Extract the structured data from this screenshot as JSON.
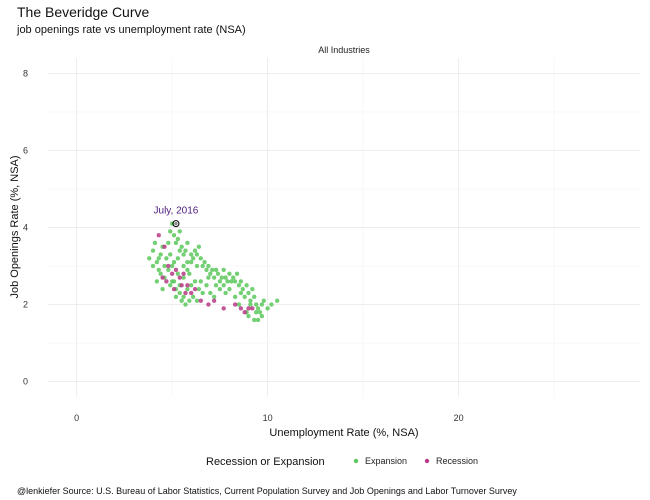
{
  "chart_data": {
    "type": "scatter",
    "title": "The Beveridge Curve",
    "subtitle": "job openings rate vs unemployment rate (NSA)",
    "facet": "All Industries",
    "xlabel": "Unemployment Rate (%, NSA)",
    "ylabel": "Job Openings Rate (%, NSA)",
    "xlim": [
      -1.5,
      29.5
    ],
    "ylim": [
      -0.4,
      8.4
    ],
    "x_ticks": [
      0,
      10,
      20
    ],
    "y_ticks": [
      0,
      2,
      4,
      6,
      8
    ],
    "grid": true,
    "legend": {
      "title": "Recession or Expansion",
      "position": "bottom"
    },
    "annotation": {
      "text": "July, 2016",
      "x": 5.2,
      "y": 4.1
    },
    "colors": {
      "Expansion": "#5cc85c",
      "Recession": "#b83b86",
      "annotation": "#4b1a7a",
      "grid": "#ebebeb"
    },
    "series": [
      {
        "name": "Expansion",
        "points": [
          [
            3.8,
            3.2
          ],
          [
            4.0,
            3.4
          ],
          [
            4.1,
            3.6
          ],
          [
            4.2,
            3.1
          ],
          [
            4.3,
            2.9
          ],
          [
            4.4,
            3.3
          ],
          [
            4.5,
            3.5
          ],
          [
            4.6,
            3.0
          ],
          [
            4.7,
            3.2
          ],
          [
            4.8,
            3.6
          ],
          [
            4.9,
            3.9
          ],
          [
            5.0,
            4.1
          ],
          [
            5.1,
            3.8
          ],
          [
            5.2,
            3.6
          ],
          [
            5.3,
            3.7
          ],
          [
            5.4,
            3.9
          ],
          [
            5.5,
            3.5
          ],
          [
            5.6,
            3.3
          ],
          [
            5.7,
            3.4
          ],
          [
            5.8,
            3.1
          ],
          [
            4.6,
            2.7
          ],
          [
            4.8,
            2.9
          ],
          [
            5.0,
            3.0
          ],
          [
            5.1,
            2.6
          ],
          [
            5.3,
            2.8
          ],
          [
            5.4,
            2.5
          ],
          [
            5.6,
            2.7
          ],
          [
            5.8,
            2.9
          ],
          [
            6.0,
            3.1
          ],
          [
            6.1,
            3.2
          ],
          [
            6.2,
            3.4
          ],
          [
            6.3,
            3.3
          ],
          [
            6.4,
            3.5
          ],
          [
            6.5,
            3.2
          ],
          [
            6.6,
            3.0
          ],
          [
            6.7,
            3.1
          ],
          [
            6.8,
            2.9
          ],
          [
            6.9,
            3.0
          ],
          [
            7.0,
            2.8
          ],
          [
            7.1,
            2.9
          ],
          [
            7.2,
            2.7
          ],
          [
            7.3,
            2.9
          ],
          [
            7.4,
            2.8
          ],
          [
            7.5,
            2.6
          ],
          [
            7.6,
            2.7
          ],
          [
            7.7,
            2.9
          ],
          [
            7.8,
            2.7
          ],
          [
            7.9,
            2.6
          ],
          [
            8.0,
            2.8
          ],
          [
            8.2,
            2.7
          ],
          [
            8.3,
            2.6
          ],
          [
            8.4,
            2.8
          ],
          [
            8.5,
            2.5
          ],
          [
            8.6,
            2.6
          ],
          [
            8.7,
            2.4
          ],
          [
            8.8,
            2.2
          ],
          [
            8.9,
            2.5
          ],
          [
            9.0,
            2.3
          ],
          [
            9.1,
            2.1
          ],
          [
            9.2,
            2.4
          ],
          [
            9.3,
            2.2
          ],
          [
            9.4,
            2.0
          ],
          [
            9.5,
            1.9
          ],
          [
            9.6,
            1.8
          ],
          [
            9.7,
            2.0
          ],
          [
            9.8,
            2.1
          ],
          [
            10.0,
            1.9
          ],
          [
            10.2,
            2.0
          ],
          [
            10.5,
            2.1
          ],
          [
            9.3,
            1.6
          ],
          [
            9.5,
            1.6
          ],
          [
            9.0,
            1.7
          ],
          [
            8.9,
            1.8
          ],
          [
            8.5,
            2.0
          ],
          [
            8.3,
            2.2
          ],
          [
            8.0,
            2.4
          ],
          [
            7.8,
            2.3
          ],
          [
            7.5,
            2.4
          ],
          [
            7.2,
            2.2
          ],
          [
            7.0,
            2.3
          ],
          [
            6.8,
            2.5
          ],
          [
            6.6,
            2.3
          ],
          [
            6.4,
            2.4
          ],
          [
            6.2,
            2.6
          ],
          [
            6.0,
            2.5
          ],
          [
            5.8,
            2.4
          ],
          [
            5.6,
            2.2
          ],
          [
            5.4,
            2.3
          ],
          [
            5.2,
            2.2
          ],
          [
            5.0,
            2.6
          ],
          [
            5.9,
            2.1
          ],
          [
            5.7,
            2.0
          ],
          [
            5.5,
            2.1
          ],
          [
            6.1,
            2.2
          ],
          [
            6.3,
            2.1
          ],
          [
            4.9,
            3.3
          ],
          [
            5.1,
            3.1
          ],
          [
            5.3,
            3.2
          ],
          [
            5.6,
            3.0
          ],
          [
            5.9,
            2.8
          ],
          [
            6.5,
            2.6
          ],
          [
            6.9,
            2.7
          ],
          [
            7.3,
            2.5
          ],
          [
            7.7,
            2.5
          ],
          [
            8.1,
            2.6
          ],
          [
            8.6,
            2.3
          ],
          [
            9.1,
            2.0
          ],
          [
            9.4,
            1.8
          ],
          [
            9.7,
            1.7
          ],
          [
            4.4,
            2.8
          ],
          [
            4.2,
            2.6
          ],
          [
            4.5,
            2.4
          ],
          [
            4.9,
            2.5
          ],
          [
            5.2,
            2.4
          ],
          [
            4.0,
            3.0
          ],
          [
            4.3,
            3.2
          ],
          [
            5.4,
            3.4
          ],
          [
            5.8,
            3.6
          ],
          [
            6.0,
            3.3
          ],
          [
            6.3,
            3.0
          ]
        ]
      },
      {
        "name": "Recession",
        "points": [
          [
            4.3,
            3.8
          ],
          [
            4.6,
            3.5
          ],
          [
            4.8,
            3.0
          ],
          [
            5.0,
            2.8
          ],
          [
            5.2,
            2.9
          ],
          [
            5.4,
            2.7
          ],
          [
            5.5,
            2.5
          ],
          [
            5.6,
            2.8
          ],
          [
            5.8,
            2.5
          ],
          [
            6.0,
            2.3
          ],
          [
            6.2,
            2.4
          ],
          [
            6.5,
            2.1
          ],
          [
            6.9,
            2.0
          ],
          [
            7.2,
            2.1
          ],
          [
            7.7,
            1.9
          ],
          [
            8.3,
            2.0
          ],
          [
            8.6,
            1.9
          ],
          [
            8.8,
            1.8
          ],
          [
            9.0,
            1.9
          ],
          [
            9.2,
            1.9
          ],
          [
            4.5,
            2.7
          ],
          [
            4.7,
            2.6
          ],
          [
            5.1,
            2.4
          ],
          [
            5.7,
            2.3
          ]
        ]
      }
    ]
  },
  "caption": "@lenkiefer Source: U.S. Bureau of Labor Statistics, Current Population Survey and Job Openings and Labor Turnover Survey"
}
